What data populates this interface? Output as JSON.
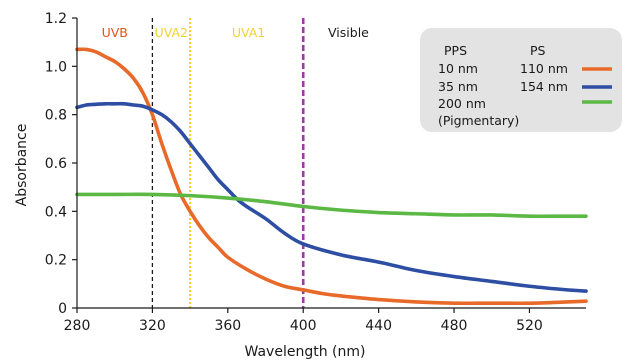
{
  "chart_data": {
    "type": "line",
    "xlabel": "Wavelength (nm)",
    "ylabel": "Absorbance",
    "xlim": [
      280,
      550
    ],
    "ylim": [
      0,
      1.2
    ],
    "x_ticks": [
      "280",
      "320",
      "360",
      "400",
      "440",
      "480",
      "520"
    ],
    "x_tick_values": [
      280,
      320,
      360,
      400,
      440,
      480,
      520
    ],
    "y_ticks": [
      "0",
      "0.2",
      "0.4",
      "0.6",
      "0.8",
      "1.0",
      "1.2"
    ],
    "y_tick_values": [
      0,
      0.2,
      0.4,
      0.6,
      0.8,
      1.0,
      1.2
    ],
    "grid": false,
    "legend_position": "top-right",
    "legend": {
      "header_pps": "PPS",
      "header_ps": "PS",
      "rows": [
        {
          "pps": "10 nm",
          "ps": "110 nm"
        },
        {
          "pps": "35 nm",
          "ps": "154 nm"
        },
        {
          "pps": "200 nm",
          "ps": ""
        },
        {
          "pps": "(Pigmentary)",
          "ps": ""
        }
      ]
    },
    "regions": [
      {
        "label": "UVB",
        "x": 300,
        "color": "#e0501e"
      },
      {
        "label": "UVA2",
        "x": 330,
        "color": "#f2d230"
      },
      {
        "label": "UVA1",
        "x": 371,
        "color": "#f2d230"
      },
      {
        "label": "Visible",
        "x": 424,
        "color": "#1a1a1a"
      }
    ],
    "vlines": [
      {
        "x": 320,
        "color": "#1a1a1a",
        "dash": "4,3",
        "width": 1.3
      },
      {
        "x": 340,
        "color": "#f2d230",
        "dash": "2,2",
        "width": 2.2
      },
      {
        "x": 400,
        "color": "#9b3aa8",
        "dash": "6,3",
        "width": 2.6
      }
    ],
    "series": [
      {
        "color": "#e86a2a",
        "x": [
          280,
          285,
          290,
          295,
          300,
          305,
          310,
          315,
          320,
          325,
          330,
          335,
          340,
          345,
          350,
          355,
          360,
          370,
          380,
          390,
          400,
          410,
          420,
          440,
          460,
          480,
          500,
          520,
          540,
          550
        ],
        "y": [
          1.07,
          1.07,
          1.06,
          1.04,
          1.02,
          0.99,
          0.95,
          0.89,
          0.8,
          0.68,
          0.57,
          0.47,
          0.4,
          0.34,
          0.29,
          0.25,
          0.21,
          0.16,
          0.12,
          0.09,
          0.075,
          0.06,
          0.05,
          0.035,
          0.025,
          0.02,
          0.02,
          0.02,
          0.025,
          0.028
        ]
      },
      {
        "color": "#2d4ea2",
        "x": [
          280,
          285,
          290,
          295,
          300,
          305,
          310,
          315,
          320,
          325,
          330,
          335,
          340,
          345,
          350,
          355,
          360,
          365,
          370,
          380,
          390,
          400,
          420,
          440,
          460,
          480,
          500,
          520,
          540,
          550
        ],
        "y": [
          0.83,
          0.84,
          0.843,
          0.845,
          0.845,
          0.845,
          0.84,
          0.835,
          0.82,
          0.8,
          0.77,
          0.73,
          0.68,
          0.63,
          0.58,
          0.53,
          0.49,
          0.45,
          0.42,
          0.37,
          0.31,
          0.265,
          0.22,
          0.19,
          0.155,
          0.13,
          0.11,
          0.09,
          0.075,
          0.07
        ]
      },
      {
        "color": "#5cb845",
        "x": [
          280,
          300,
          320,
          340,
          360,
          380,
          400,
          420,
          440,
          460,
          480,
          500,
          520,
          540,
          550
        ],
        "y": [
          0.47,
          0.47,
          0.47,
          0.465,
          0.455,
          0.44,
          0.42,
          0.405,
          0.395,
          0.39,
          0.385,
          0.385,
          0.38,
          0.38,
          0.38
        ]
      }
    ]
  }
}
